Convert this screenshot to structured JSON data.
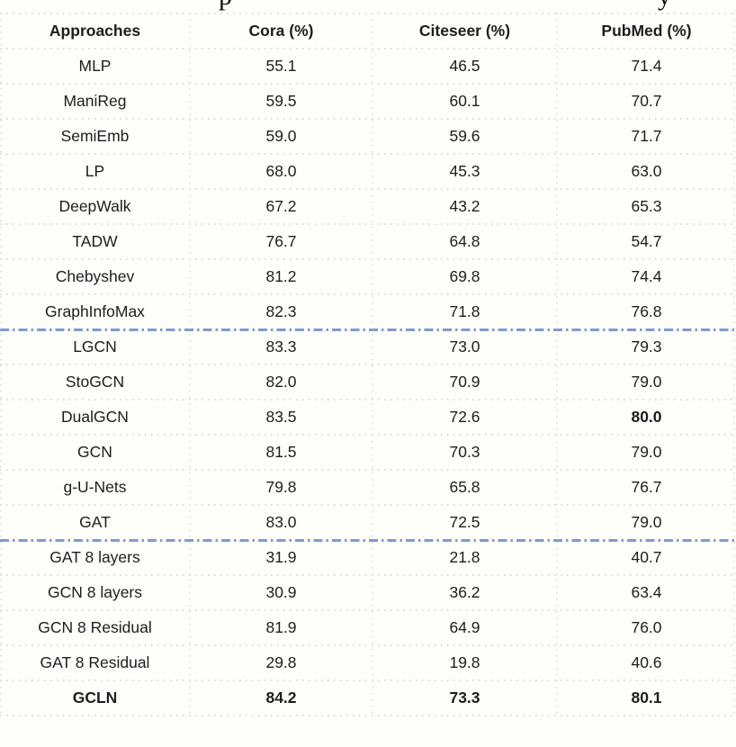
{
  "caption_fragments": [
    "p",
    "y"
  ],
  "colors": {
    "background": "#fffefa",
    "text": "#1d1d1d",
    "grid_dots": "#d9d9d9",
    "group_divider_blue": "#7e9bd0"
  },
  "table": {
    "headers": [
      "Approaches",
      "Cora (%)",
      "Citeseer (%)",
      "PubMed (%)"
    ],
    "rows": [
      {
        "approach": "MLP",
        "cora": "55.1",
        "citeseer": "46.5",
        "pubmed": "71.4"
      },
      {
        "approach": "ManiReg",
        "cora": "59.5",
        "citeseer": "60.1",
        "pubmed": "70.7"
      },
      {
        "approach": "SemiEmb",
        "cora": "59.0",
        "citeseer": "59.6",
        "pubmed": "71.7"
      },
      {
        "approach": "LP",
        "cora": "68.0",
        "citeseer": "45.3",
        "pubmed": "63.0"
      },
      {
        "approach": "DeepWalk",
        "cora": "67.2",
        "citeseer": "43.2",
        "pubmed": "65.3"
      },
      {
        "approach": "TADW",
        "cora": "76.7",
        "citeseer": "64.8",
        "pubmed": "54.7"
      },
      {
        "approach": "Chebyshev",
        "cora": "81.2",
        "citeseer": "69.8",
        "pubmed": "74.4"
      },
      {
        "approach": "GraphInfoMax",
        "cora": "82.3",
        "citeseer": "71.8",
        "pubmed": "76.8"
      },
      {
        "approach": "LGCN",
        "cora": "83.3",
        "citeseer": "73.0",
        "pubmed": "79.3",
        "divider_before": true
      },
      {
        "approach": "StoGCN",
        "cora": "82.0",
        "citeseer": "70.9",
        "pubmed": "79.0"
      },
      {
        "approach": "DualGCN",
        "cora": "83.5",
        "citeseer": "72.6",
        "pubmed": "80.0",
        "bold_cells": [
          3
        ]
      },
      {
        "approach": "GCN",
        "cora": "81.5",
        "citeseer": "70.3",
        "pubmed": "79.0"
      },
      {
        "approach": "g-U-Nets",
        "cora": "79.8",
        "citeseer": "65.8",
        "pubmed": "76.7"
      },
      {
        "approach": "GAT",
        "cora": "83.0",
        "citeseer": "72.5",
        "pubmed": "79.0"
      },
      {
        "approach": "GAT 8 layers",
        "cora": "31.9",
        "citeseer": "21.8",
        "pubmed": "40.7",
        "divider_before": true
      },
      {
        "approach": "GCN 8 layers",
        "cora": "30.9",
        "citeseer": "36.2",
        "pubmed": "63.4"
      },
      {
        "approach": "GCN 8 Residual",
        "cora": "81.9",
        "citeseer": "64.9",
        "pubmed": "76.0"
      },
      {
        "approach": "GAT 8 Residual",
        "cora": "29.8",
        "citeseer": "19.8",
        "pubmed": "40.6"
      },
      {
        "approach": "GCLN",
        "cora": "84.2",
        "citeseer": "73.3",
        "pubmed": "80.1",
        "bold": true
      }
    ]
  }
}
